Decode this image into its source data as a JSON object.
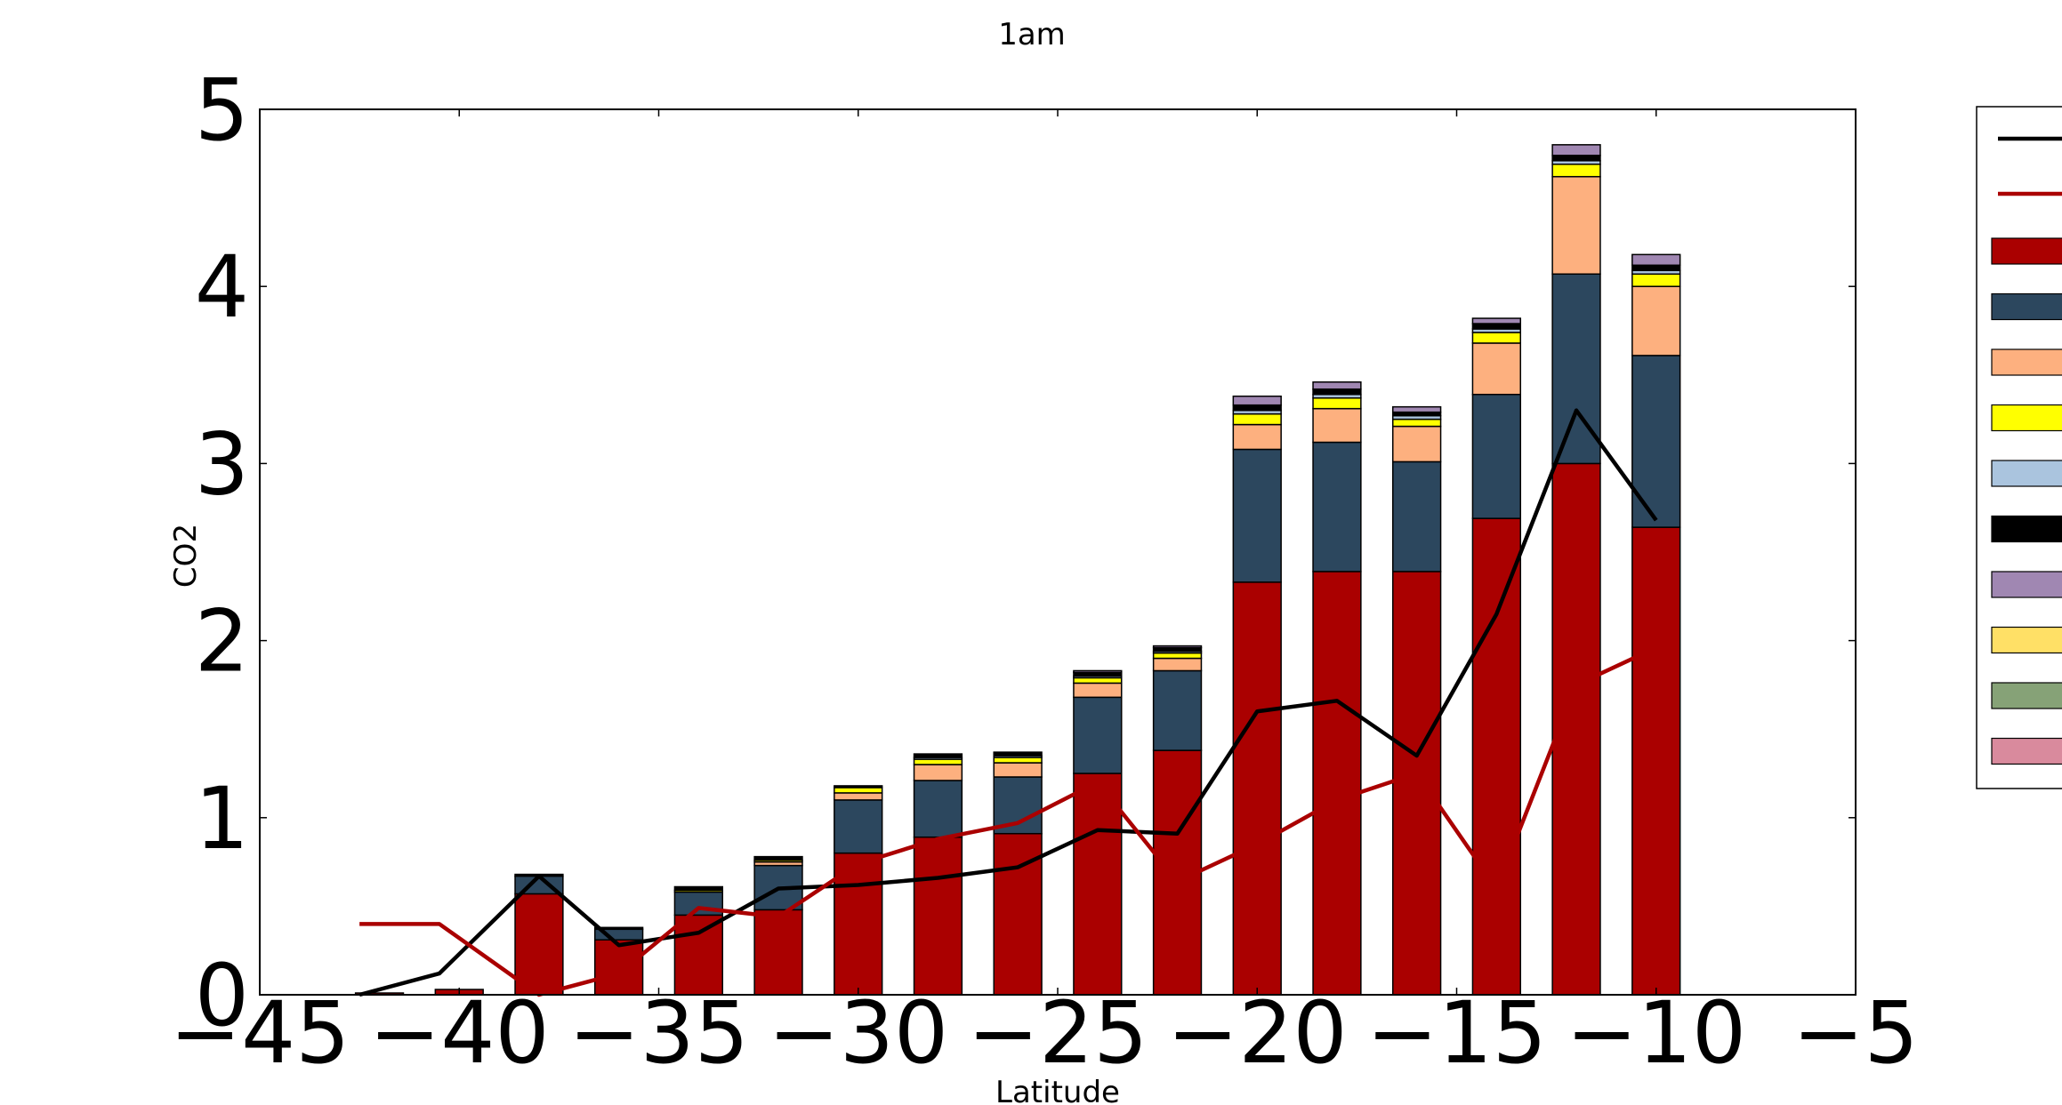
{
  "chart_data": {
    "type": "bar",
    "title": "1am",
    "xlabel": "Latitude",
    "ylabel": "CO2",
    "xlim": [
      -45,
      -5
    ],
    "ylim": [
      0,
      5
    ],
    "x_ticks": [
      -45,
      -40,
      -35,
      -30,
      -25,
      -20,
      -15,
      -10,
      -5
    ],
    "x_tick_labels": [
      "−45",
      "−40",
      "−35",
      "−30",
      "−25",
      "−20",
      "−15",
      "−10",
      "−5"
    ],
    "y_ticks": [
      0,
      1,
      2,
      3,
      4,
      5
    ],
    "y_tick_labels": [
      "0",
      "1",
      "2",
      "3",
      "4",
      "5"
    ],
    "grid": false,
    "legend_position": "right, outside plot (partially cut off)",
    "bar_width": 1.2,
    "x": [
      -42,
      -40,
      -38,
      -36,
      -34,
      -32,
      -30,
      -28,
      -26,
      -24,
      -22,
      -20,
      -18,
      -16,
      -14,
      -12,
      -10
    ],
    "lines": [
      {
        "color": "#000000",
        "x": [
          -42.5,
          -40.5,
          -38,
          -36,
          -34,
          -32,
          -30,
          -28,
          -26,
          -24,
          -22,
          -20,
          -18,
          -16,
          -14,
          -12,
          -10
        ],
        "values": [
          0.0,
          0.12,
          0.67,
          0.28,
          0.35,
          0.6,
          0.62,
          0.66,
          0.72,
          0.93,
          0.91,
          1.6,
          1.66,
          1.35,
          2.15,
          3.3,
          2.68
        ]
      },
      {
        "color": "#aa0000",
        "x": [
          -42.5,
          -40.5,
          -38,
          -36,
          -34,
          -32,
          -30,
          -28,
          -26,
          -24,
          -22,
          -20,
          -18,
          -16,
          -14,
          -12,
          -10
        ],
        "values": [
          0.4,
          0.4,
          0.0,
          0.12,
          0.49,
          0.44,
          0.74,
          0.88,
          0.97,
          1.2,
          0.64,
          0.85,
          1.1,
          1.25,
          0.6,
          1.75,
          1.96
        ]
      }
    ],
    "series": [
      {
        "color": "#aa0000",
        "values": [
          0.01,
          0.03,
          0.57,
          0.31,
          0.45,
          0.48,
          0.8,
          0.89,
          0.91,
          1.25,
          1.38,
          2.33,
          2.39,
          2.39,
          2.69,
          3.0,
          2.64
        ]
      },
      {
        "color": "#2c475e",
        "values": [
          0.0,
          0.0,
          0.1,
          0.06,
          0.13,
          0.25,
          0.3,
          0.32,
          0.32,
          0.43,
          0.45,
          0.75,
          0.73,
          0.62,
          0.7,
          1.07,
          0.97
        ]
      },
      {
        "color": "#fdb07f",
        "values": [
          0.0,
          0.0,
          0.0,
          0.0,
          0.0,
          0.02,
          0.04,
          0.09,
          0.08,
          0.08,
          0.07,
          0.14,
          0.19,
          0.2,
          0.29,
          0.55,
          0.39
        ]
      },
      {
        "color": "#ffff00",
        "values": [
          0.0,
          0.0,
          0.0,
          0.0,
          0.01,
          0.01,
          0.03,
          0.03,
          0.03,
          0.03,
          0.03,
          0.06,
          0.06,
          0.04,
          0.06,
          0.07,
          0.07
        ]
      },
      {
        "color": "#aac4de",
        "values": [
          0.0,
          0.0,
          0.0,
          0.0,
          0.0,
          0.0,
          0.0,
          0.01,
          0.01,
          0.01,
          0.01,
          0.02,
          0.02,
          0.02,
          0.02,
          0.02,
          0.02
        ]
      },
      {
        "color": "#000000",
        "values": [
          0.0,
          0.0,
          0.01,
          0.01,
          0.02,
          0.02,
          0.01,
          0.02,
          0.02,
          0.02,
          0.02,
          0.03,
          0.03,
          0.02,
          0.03,
          0.03,
          0.03
        ]
      },
      {
        "color": "#a087b2",
        "values": [
          0.0,
          0.0,
          0.0,
          0.0,
          0.0,
          0.0,
          0.0,
          0.0,
          0.0,
          0.01,
          0.01,
          0.05,
          0.04,
          0.03,
          0.03,
          0.06,
          0.06
        ]
      },
      {
        "color": "#ffe066",
        "values": [
          0.0,
          0.0,
          0.0,
          0.0,
          0.0,
          0.0,
          0.0,
          0.0,
          0.0,
          0.0,
          0.0,
          0.0,
          0.0,
          0.0,
          0.0,
          0.0,
          0.0
        ]
      },
      {
        "color": "#86a277",
        "values": [
          0.0,
          0.0,
          0.0,
          0.0,
          0.0,
          0.0,
          0.0,
          0.0,
          0.0,
          0.0,
          0.0,
          0.0,
          0.0,
          0.0,
          0.0,
          0.0,
          0.0
        ]
      },
      {
        "color": "#d98a9d",
        "values": [
          0.0,
          0.0,
          0.0,
          0.0,
          0.0,
          0.0,
          0.0,
          0.0,
          0.0,
          0.0,
          0.0,
          0.0,
          0.0,
          0.0,
          0.0,
          0.0,
          0.0
        ]
      }
    ]
  }
}
